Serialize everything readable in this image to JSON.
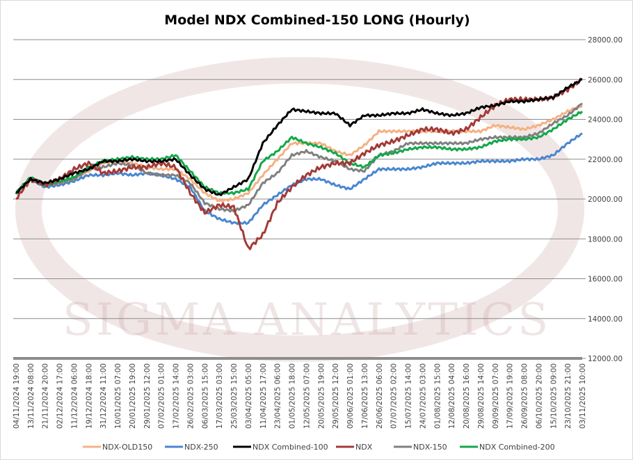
{
  "chart_data": {
    "type": "line",
    "title": "Model NDX Combined-150 LONG (Hourly)",
    "watermark": "SIGMA ANALYTICS",
    "xlabel": "",
    "ylabel": "",
    "ylim": [
      12000,
      28000
    ],
    "y_ticks": [
      "12000.00",
      "14000.00",
      "16000.00",
      "18000.00",
      "20000.00",
      "22000.00",
      "24000.00",
      "26000.00",
      "28000.00"
    ],
    "y_tick_values": [
      12000,
      14000,
      16000,
      18000,
      20000,
      22000,
      24000,
      26000,
      28000
    ],
    "grid": true,
    "legend_position": "bottom",
    "categories": [
      "04/11/2024 19:00",
      "13/11/2024 08:00",
      "21/11/2024 20:00",
      "02/12/2024 17:00",
      "11/12/2024 06:00",
      "19/12/2024 18:00",
      "31/12/2024 11:00",
      "10/01/2025 07:00",
      "20/01/2025 19:00",
      "29/01/2025 12:00",
      "07/02/2025 01:00",
      "17/02/2025 14:00",
      "26/02/2025 03:00",
      "06/03/2025 15:00",
      "17/03/2025 03:00",
      "25/03/2025 15:00",
      "03/04/2025 05:00",
      "11/04/2025 17:00",
      "23/04/2025 06:00",
      "01/05/2025 18:00",
      "12/05/2025 07:00",
      "20/05/2025 19:00",
      "29/05/2025 12:00",
      "09/06/2025 01:00",
      "17/06/2025 13:00",
      "26/06/2025 06:00",
      "07/07/2025 02:00",
      "15/07/2025 14:00",
      "24/07/2025 03:00",
      "01/08/2025 15:00",
      "12/08/2025 04:00",
      "20/08/2025 16:00",
      "29/08/2025 14:00",
      "09/09/2025 07:00",
      "17/09/2025 19:00",
      "26/09/2025 08:00",
      "06/10/2025 20:00",
      "15/10/2025 09:00",
      "23/10/2025 21:00",
      "03/11/2025 10:00"
    ],
    "series": [
      {
        "name": "NDX-OLD150",
        "color": "#f4b183",
        "values": [
          20300,
          21000,
          20700,
          20800,
          21000,
          21400,
          21800,
          21900,
          21800,
          21600,
          21500,
          21500,
          21000,
          20300,
          19900,
          20000,
          20300,
          21200,
          22000,
          22800,
          22800,
          22800,
          22400,
          22200,
          22700,
          23400,
          23400,
          23400,
          23400,
          23400,
          23400,
          23400,
          23400,
          23700,
          23600,
          23500,
          23700,
          24000,
          24400,
          24700
        ]
      },
      {
        "name": "NDX-250",
        "color": "#4a86d0",
        "values": [
          20300,
          21000,
          20600,
          20700,
          20900,
          21200,
          21200,
          21300,
          21200,
          21300,
          21200,
          21000,
          20600,
          19400,
          19000,
          18800,
          18800,
          19700,
          20200,
          20700,
          21000,
          21000,
          20700,
          20500,
          21000,
          21500,
          21500,
          21500,
          21600,
          21800,
          21800,
          21800,
          21900,
          21900,
          21900,
          22000,
          22000,
          22200,
          22800,
          23300
        ]
      },
      {
        "name": "NDX Combined-100",
        "color": "#000000",
        "values": [
          20300,
          21000,
          20800,
          21000,
          21300,
          21500,
          21900,
          21900,
          22000,
          21900,
          21900,
          22000,
          21200,
          20500,
          20200,
          20600,
          21000,
          22800,
          23700,
          24500,
          24400,
          24300,
          24300,
          23700,
          24200,
          24200,
          24300,
          24300,
          24500,
          24300,
          24200,
          24300,
          24600,
          24700,
          24900,
          24900,
          25000,
          25100,
          25600,
          26000
        ]
      },
      {
        "name": "NDX",
        "color": "#a33a36",
        "values": [
          20000,
          21000,
          20700,
          21000,
          21500,
          21800,
          21300,
          21400,
          21600,
          21600,
          21800,
          21600,
          20300,
          19300,
          19700,
          19600,
          17500,
          18200,
          19800,
          20600,
          21200,
          21600,
          21800,
          21800,
          22300,
          22700,
          22900,
          23200,
          23500,
          23500,
          23300,
          23500,
          24100,
          24700,
          25000,
          25000,
          25000,
          25100,
          25500,
          26000
        ]
      },
      {
        "name": "NDX-150",
        "color": "#808080",
        "values": [
          20300,
          21000,
          20700,
          20800,
          21000,
          21500,
          21600,
          21800,
          21700,
          21300,
          21200,
          21200,
          20800,
          19800,
          19500,
          19400,
          19700,
          20800,
          21300,
          22200,
          22400,
          22100,
          21900,
          21500,
          21400,
          22200,
          22400,
          22800,
          22800,
          22800,
          22800,
          22800,
          23000,
          23100,
          23100,
          23100,
          23300,
          23800,
          24200,
          24800
        ]
      },
      {
        "name": "NDX Combined-200",
        "color": "#12a84a",
        "values": [
          20300,
          21100,
          20700,
          20900,
          21100,
          21600,
          21900,
          22000,
          22100,
          22000,
          22000,
          22200,
          21400,
          20600,
          20300,
          20300,
          20500,
          21900,
          22400,
          23100,
          22800,
          22600,
          22300,
          21800,
          21600,
          22200,
          22300,
          22500,
          22600,
          22600,
          22500,
          22500,
          22600,
          22900,
          23000,
          23000,
          23100,
          23500,
          24000,
          24400
        ]
      }
    ]
  }
}
